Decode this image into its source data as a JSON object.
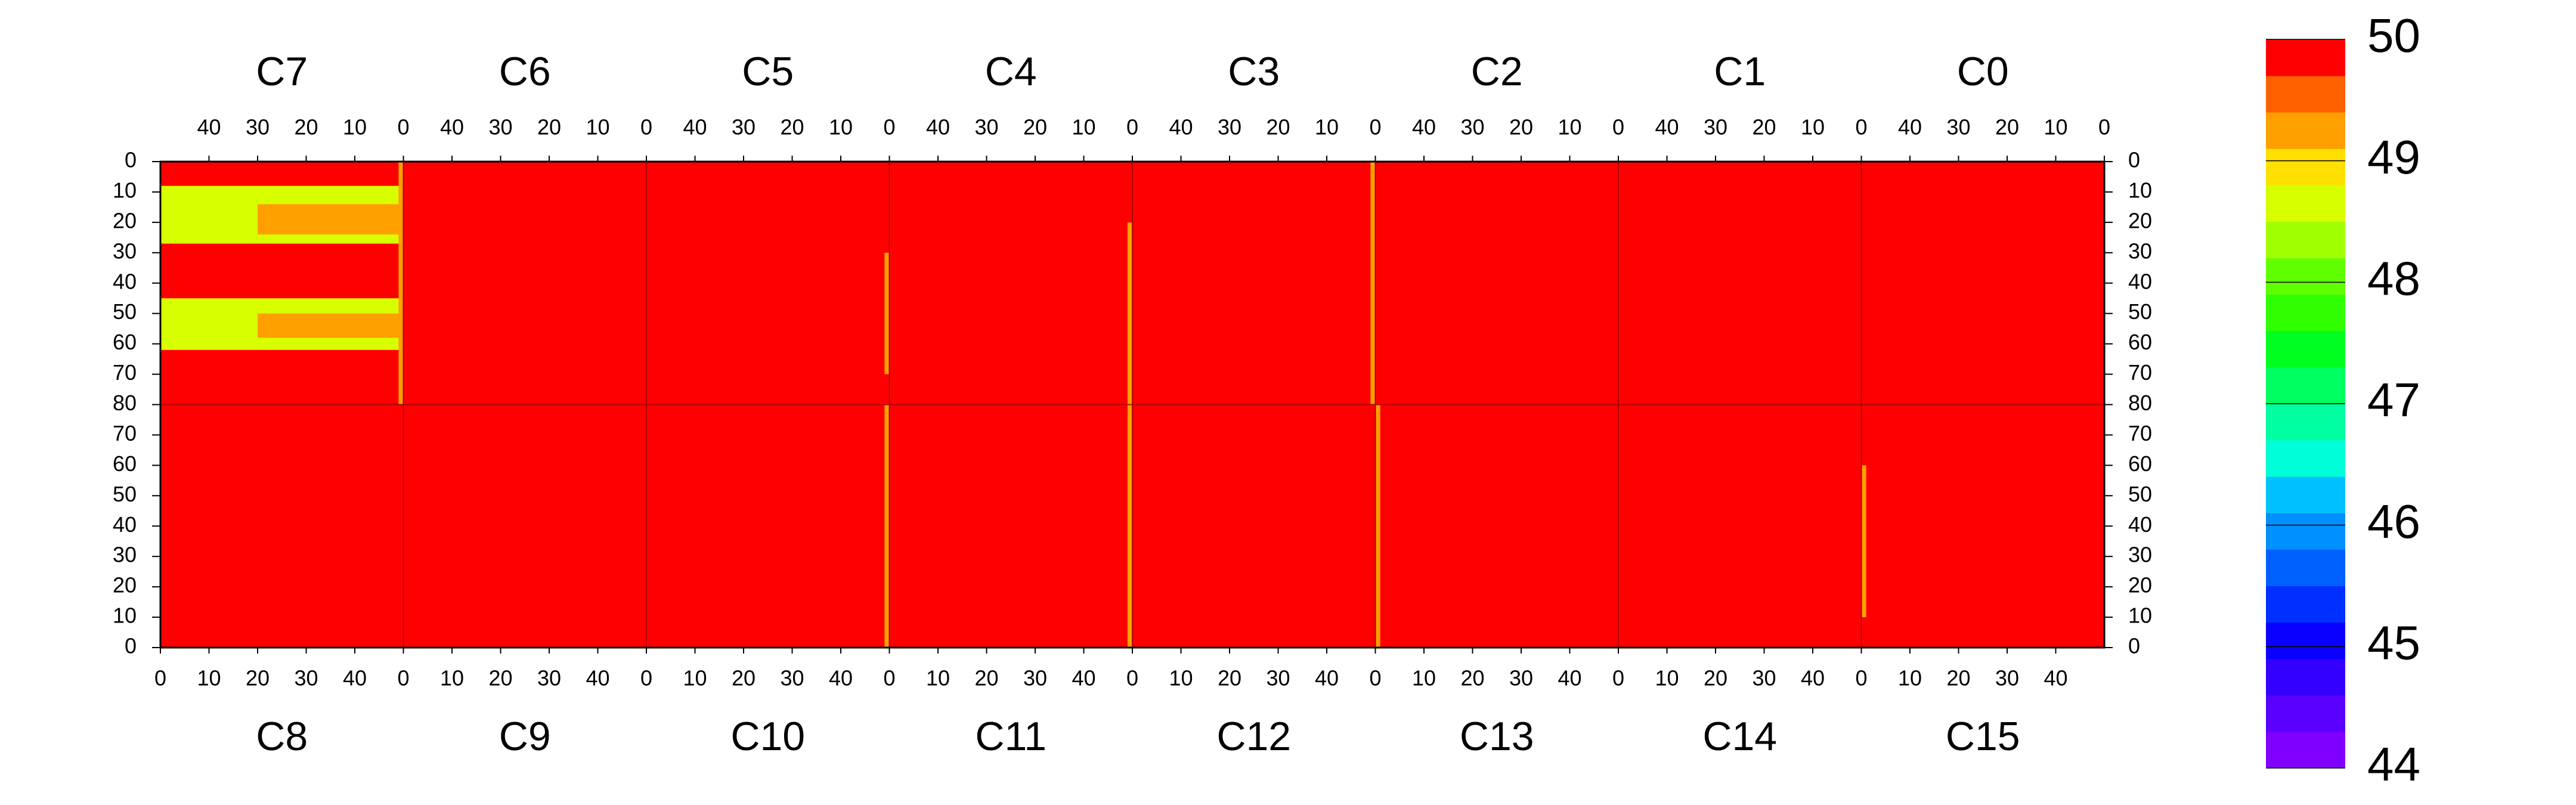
{
  "chart_data": {
    "type": "heatmap",
    "panels": [
      {
        "name": "C7",
        "half": "top"
      },
      {
        "name": "C6",
        "half": "top"
      },
      {
        "name": "C5",
        "half": "top"
      },
      {
        "name": "C4",
        "half": "top"
      },
      {
        "name": "C3",
        "half": "top"
      },
      {
        "name": "C2",
        "half": "top"
      },
      {
        "name": "C1",
        "half": "top"
      },
      {
        "name": "C0",
        "half": "top"
      },
      {
        "name": "C8",
        "half": "bottom"
      },
      {
        "name": "C9",
        "half": "bottom"
      },
      {
        "name": "C10",
        "half": "bottom"
      },
      {
        "name": "C11",
        "half": "bottom"
      },
      {
        "name": "C12",
        "half": "bottom"
      },
      {
        "name": "C13",
        "half": "bottom"
      },
      {
        "name": "C14",
        "half": "bottom"
      },
      {
        "name": "C15",
        "half": "bottom"
      }
    ],
    "xlim": [
      0,
      50
    ],
    "xticks": [
      0,
      10,
      20,
      30,
      40
    ],
    "ylim": [
      0,
      80
    ],
    "yticks": [
      0,
      10,
      20,
      30,
      40,
      50,
      60,
      70,
      80
    ],
    "background_value": 50,
    "patches": [
      {
        "panel": 0,
        "x": [
          0,
          50
        ],
        "y": [
          8,
          27
        ],
        "value": 48.7
      },
      {
        "panel": 0,
        "x": [
          0,
          50
        ],
        "y": [
          45,
          62
        ],
        "value": 48.7
      },
      {
        "panel": 0,
        "x": [
          0,
          30
        ],
        "y": [
          14,
          24
        ],
        "value": 49.3
      },
      {
        "panel": 0,
        "x": [
          0,
          30
        ],
        "y": [
          50,
          58
        ],
        "value": 49.3
      },
      {
        "panel": 0,
        "x": [
          0,
          1
        ],
        "y": [
          0,
          80
        ],
        "value": 49.3
      },
      {
        "panel": 2,
        "x": [
          0,
          1
        ],
        "y": [
          30,
          70
        ],
        "value": 49.3
      },
      {
        "panel": 3,
        "x": [
          0,
          1
        ],
        "y": [
          20,
          80
        ],
        "value": 49.3
      },
      {
        "panel": 4,
        "x": [
          0,
          1
        ],
        "y": [
          0,
          80
        ],
        "value": 49.3
      },
      {
        "panel": 10,
        "x": [
          49,
          50
        ],
        "y": [
          0,
          80
        ],
        "value": 49.3
      },
      {
        "panel": 11,
        "x": [
          49,
          50
        ],
        "y": [
          0,
          80
        ],
        "value": 49.3
      },
      {
        "panel": 13,
        "x": [
          0,
          1
        ],
        "y": [
          0,
          80
        ],
        "value": 49.3
      },
      {
        "panel": 15,
        "x": [
          0,
          1
        ],
        "y": [
          10,
          60
        ],
        "value": 49.3
      }
    ],
    "zlim": [
      44,
      50
    ],
    "zticks": [
      44,
      45,
      46,
      47,
      48,
      49,
      50
    ],
    "palette": [
      "#7f00ff",
      "#5a00ff",
      "#3300ff",
      "#0a00ff",
      "#0030ff",
      "#0060ff",
      "#0090ff",
      "#00c0ff",
      "#00ffd8",
      "#00ffa0",
      "#00ff60",
      "#00ff20",
      "#30ff00",
      "#60ff00",
      "#a0ff00",
      "#d8ff00",
      "#ffe000",
      "#ffa000",
      "#ff6000",
      "#ff0000"
    ]
  }
}
